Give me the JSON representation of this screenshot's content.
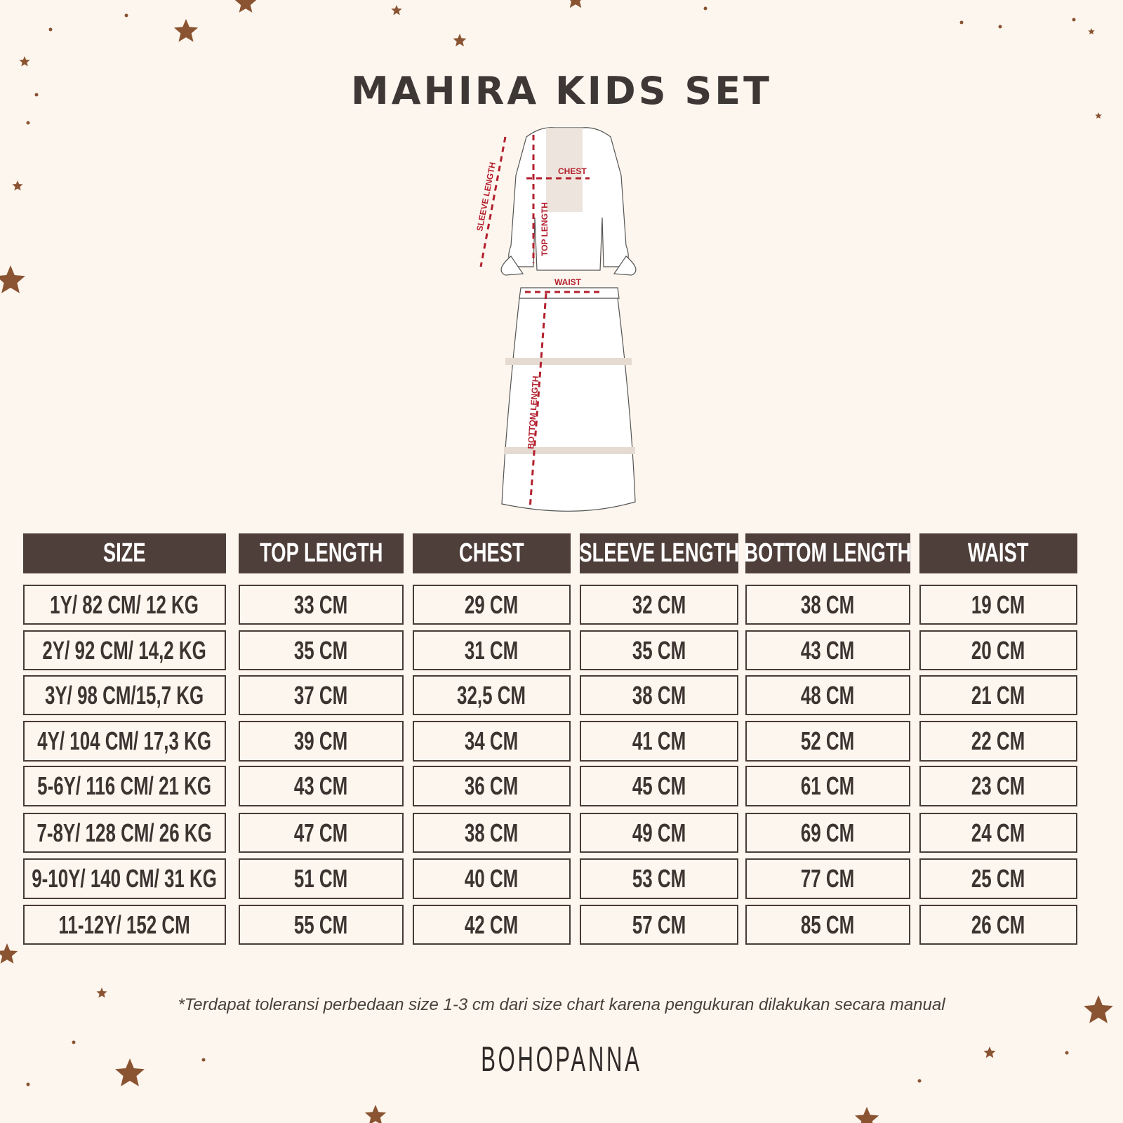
{
  "title": "MAHIRA KIDS SET",
  "illustration": {
    "labels": {
      "sleeve": "SLEEVE LENGTH",
      "chest": "CHEST",
      "top": "TOP LENGTH",
      "waist": "WAIST",
      "bottom": "BOTTOM LENGTH"
    },
    "measure_color": "#b3202e"
  },
  "table": {
    "headers": [
      "SIZE",
      "TOP LENGTH",
      "CHEST",
      "SLEEVE LENGTH",
      "BOTTOM LENGTH",
      "WAIST"
    ],
    "rows": [
      [
        "1Y/ 82 CM/ 12 KG",
        "33 CM",
        "29 CM",
        "32 CM",
        "38 CM",
        "19 CM"
      ],
      [
        "2Y/ 92 CM/ 14,2 KG",
        "35 CM",
        "31 CM",
        "35 CM",
        "43 CM",
        "20 CM"
      ],
      [
        "3Y/ 98 CM/15,7 KG",
        "37 CM",
        "32,5 CM",
        "38 CM",
        "48 CM",
        "21 CM"
      ],
      [
        "4Y/ 104 CM/ 17,3 KG",
        "39 CM",
        "34 CM",
        "41 CM",
        "52 CM",
        "22 CM"
      ],
      [
        "5-6Y/ 116 CM/ 21 KG",
        "43 CM",
        "36 CM",
        "45 CM",
        "61 CM",
        "23 CM"
      ],
      [
        "7-8Y/ 128 CM/ 26 KG",
        "47 CM",
        "38 CM",
        "49 CM",
        "69 CM",
        "24 CM"
      ],
      [
        "9-10Y/ 140 CM/ 31 KG",
        "51 CM",
        "40 CM",
        "53 CM",
        "77 CM",
        "25 CM"
      ],
      [
        "11-12Y/ 152 CM",
        "55 CM",
        "42 CM",
        "57 CM",
        "85 CM",
        "26 CM"
      ]
    ]
  },
  "note": "*Terdapat toleransi perbedaan size 1-3 cm dari size chart karena pengukuran dilakukan secara manual",
  "brand": "BOHOPANNA",
  "colors": {
    "background": "#fdf6ee",
    "header": "#4f3f3a",
    "star": "#8a5331"
  }
}
